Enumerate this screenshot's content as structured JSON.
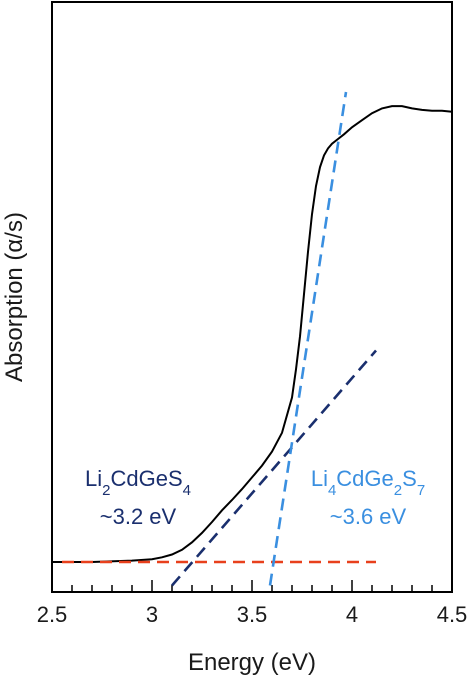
{
  "chart_data": {
    "type": "line",
    "xlabel": "Energy (eV)",
    "ylabel": "Absorption (α/s)",
    "xlim": [
      2.5,
      4.5
    ],
    "ylim": [
      0,
      1
    ],
    "x_ticks": [
      "2.5",
      "3",
      "3.5",
      "4",
      "4.5"
    ],
    "x_tick_values": [
      2.5,
      3.0,
      3.5,
      4.0,
      4.5
    ],
    "x_minor_step": 0.1,
    "y_ticks_shown": false,
    "grid": false,
    "series": [
      {
        "color": "#000000",
        "style": "solid",
        "x": [
          2.5,
          2.7,
          2.9,
          3.0,
          3.05,
          3.1,
          3.15,
          3.2,
          3.25,
          3.3,
          3.35,
          3.4,
          3.45,
          3.5,
          3.55,
          3.6,
          3.65,
          3.7,
          3.72,
          3.74,
          3.76,
          3.78,
          3.8,
          3.82,
          3.84,
          3.86,
          3.88,
          3.9,
          3.93,
          3.96,
          4.0,
          4.05,
          4.1,
          4.15,
          4.2,
          4.25,
          4.3,
          4.35,
          4.4,
          4.45,
          4.5
        ],
        "y": [
          0.0,
          0.0,
          0.003,
          0.006,
          0.01,
          0.016,
          0.026,
          0.042,
          0.062,
          0.085,
          0.11,
          0.132,
          0.155,
          0.18,
          0.205,
          0.235,
          0.275,
          0.35,
          0.41,
          0.48,
          0.57,
          0.66,
          0.74,
          0.8,
          0.84,
          0.865,
          0.88,
          0.89,
          0.9,
          0.91,
          0.925,
          0.94,
          0.955,
          0.965,
          0.97,
          0.97,
          0.965,
          0.962,
          0.96,
          0.96,
          0.958
        ]
      },
      {
        "color": "#e8401c",
        "style": "dashed",
        "x": [
          2.55,
          4.12
        ],
        "y": [
          0.0,
          0.0
        ]
      },
      {
        "color": "#1a2f6e",
        "style": "dashed",
        "x": [
          3.1,
          4.12
        ],
        "y": [
          -0.05,
          0.45
        ]
      },
      {
        "color": "#3a8fe0",
        "style": "dashed",
        "x": [
          3.59,
          3.97
        ],
        "y": [
          -0.05,
          1.0
        ]
      }
    ],
    "annotations": [
      {
        "id": "li2",
        "formula": [
          {
            "t": "Li"
          },
          {
            "t": "2",
            "sub": true
          },
          {
            "t": "CdGeS"
          },
          {
            "t": "4",
            "sub": true
          }
        ],
        "value": "~3.2 eV",
        "color": "#1a2f6e"
      },
      {
        "id": "li4",
        "formula": [
          {
            "t": "Li"
          },
          {
            "t": "4",
            "sub": true
          },
          {
            "t": "CdGe"
          },
          {
            "t": "2",
            "sub": true
          },
          {
            "t": "S"
          },
          {
            "t": "7",
            "sub": true
          }
        ],
        "value": "~3.6 eV",
        "color": "#3a8fe0"
      }
    ]
  }
}
